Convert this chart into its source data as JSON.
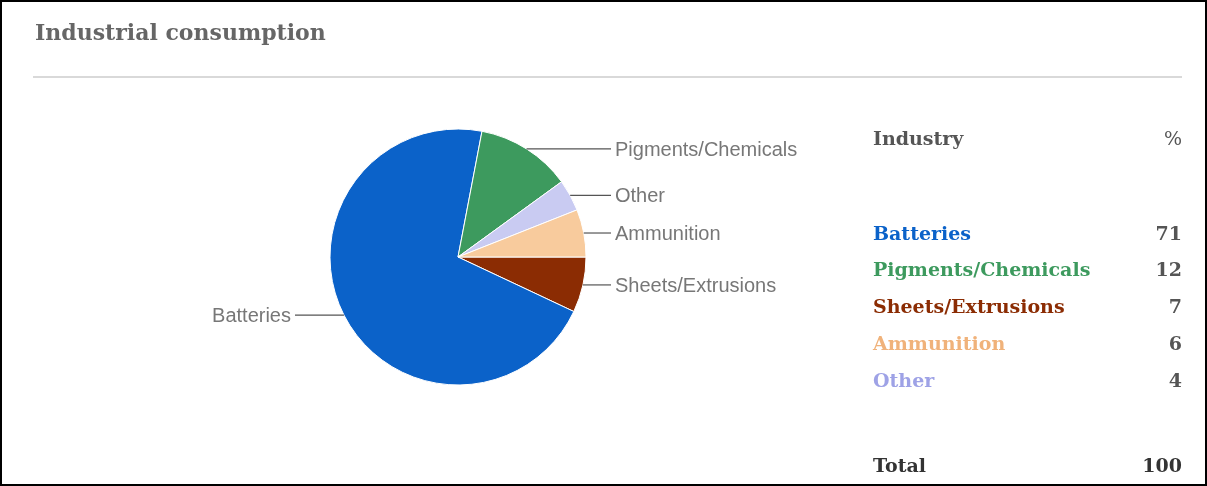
{
  "chart_data": [
    {
      "type": "pie",
      "title": "Industrial consumption",
      "categories": [
        "Sheets/Extrusions",
        "Batteries",
        "Pigments/Chemicals",
        "Other",
        "Ammunition"
      ],
      "values": [
        7,
        71,
        12,
        4,
        6
      ],
      "colors": [
        "#8b2c03",
        "#0b62c9",
        "#3d9a5e",
        "#c9cbf2",
        "#f8cb9d"
      ]
    },
    {
      "type": "other",
      "categories": [
        "Batteries",
        "Pigments/Chemicals",
        "Sheets/Extrusions",
        "Ammunition",
        "Other"
      ],
      "values": [
        71,
        12,
        7,
        6,
        4
      ],
      "colors": [
        "#0b62c9",
        "#3d9a5e",
        "#8b2c03",
        "#f0b27a",
        "#9ea2e6"
      ],
      "data_labels": true,
      "annotations": [
        "Industry",
        "%",
        "Total",
        "100"
      ]
    }
  ]
}
